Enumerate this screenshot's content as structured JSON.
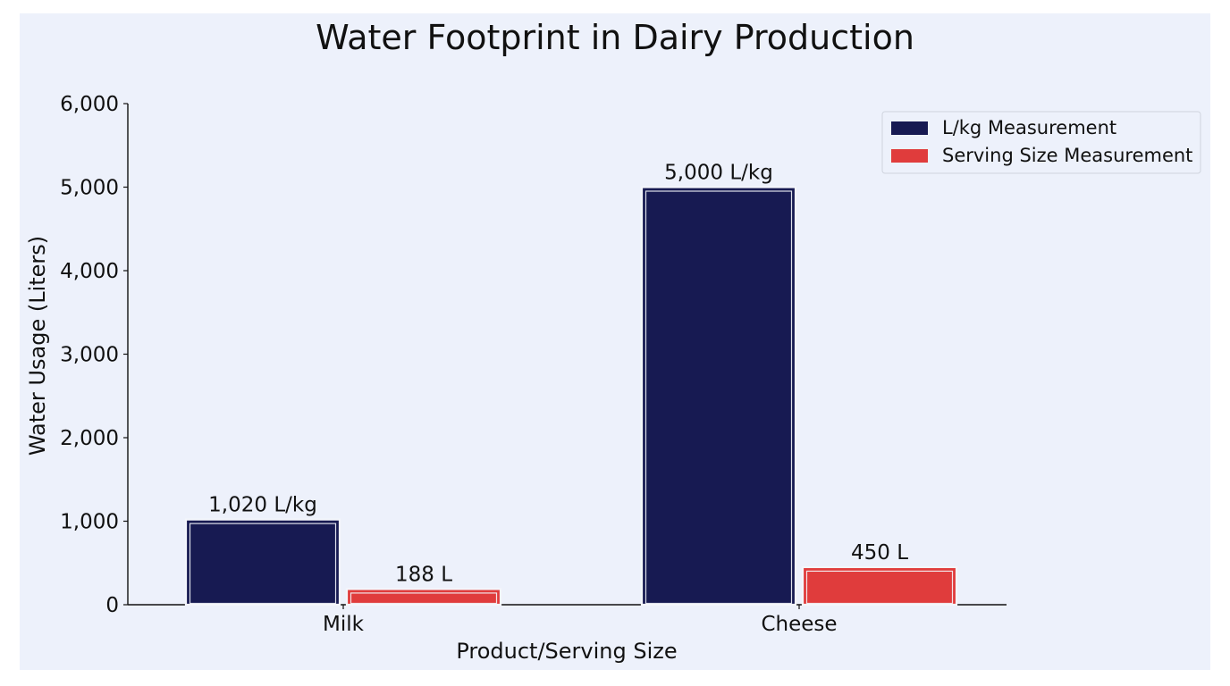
{
  "chart_data": {
    "type": "bar",
    "title": "Water Footprint in Dairy Production",
    "xlabel": "Product/Serving Size",
    "ylabel": "Water Usage (Liters)",
    "categories": [
      "Milk",
      "Cheese"
    ],
    "ylim": [
      0,
      6000
    ],
    "yticks": [
      0,
      1000,
      2000,
      3000,
      4000,
      5000,
      6000
    ],
    "ytick_labels": [
      "0",
      "1,000",
      "2,000",
      "3,000",
      "4,000",
      "5,000",
      "6,000"
    ],
    "grid": false,
    "legend_position": "top-right",
    "series": [
      {
        "name": "L/kg Measurement",
        "color": "#171a52",
        "values": [
          1020,
          5000
        ],
        "data_labels": [
          "1,020 L/kg",
          "5,000 L/kg"
        ]
      },
      {
        "name": "Serving Size Measurement",
        "color": "#e03c3c",
        "values": [
          188,
          450
        ],
        "data_labels": [
          "188 L",
          "450 L"
        ]
      }
    ]
  }
}
